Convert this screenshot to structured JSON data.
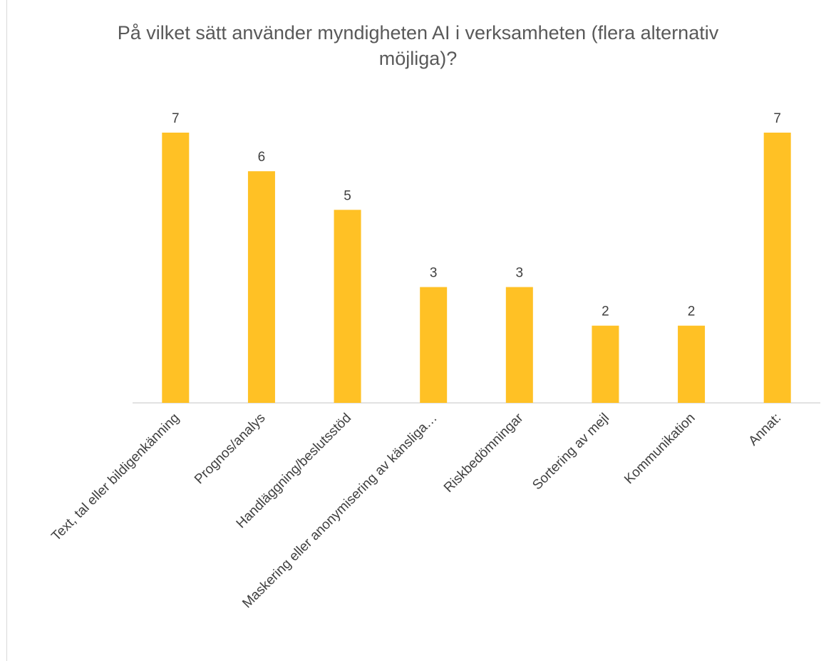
{
  "chart_data": {
    "type": "bar",
    "title": "På vilket sätt använder myndigheten AI i verksamheten (flera alternativ möjliga)?",
    "categories": [
      "Text, tal eller bildigenkänning",
      "Prognos/analys",
      "Handläggning/beslutsstöd",
      "Maskering eller anonymisering av känsliga…",
      "Riskbedömningar",
      "Sortering av mejl",
      "Kommunikation",
      "Annat:"
    ],
    "values": [
      7,
      6,
      5,
      3,
      3,
      2,
      2,
      7
    ],
    "color": "#FFC125",
    "ylim": [
      0,
      7
    ]
  }
}
